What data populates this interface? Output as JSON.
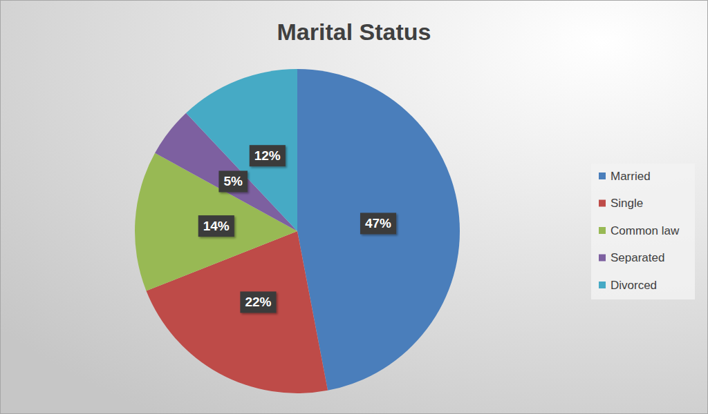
{
  "chart_data": {
    "type": "pie",
    "title": "Marital Status",
    "categories": [
      "Married",
      "Single",
      "Common law",
      "Separated",
      "Divorced"
    ],
    "values": [
      47,
      22,
      14,
      5,
      12
    ],
    "value_labels": [
      "47%",
      "22%",
      "14%",
      "5%",
      "12%"
    ],
    "colors": [
      "#4a7ebb",
      "#be4b48",
      "#98b954",
      "#7d60a0",
      "#46aac5"
    ],
    "data_labels": true,
    "legend": "right"
  }
}
